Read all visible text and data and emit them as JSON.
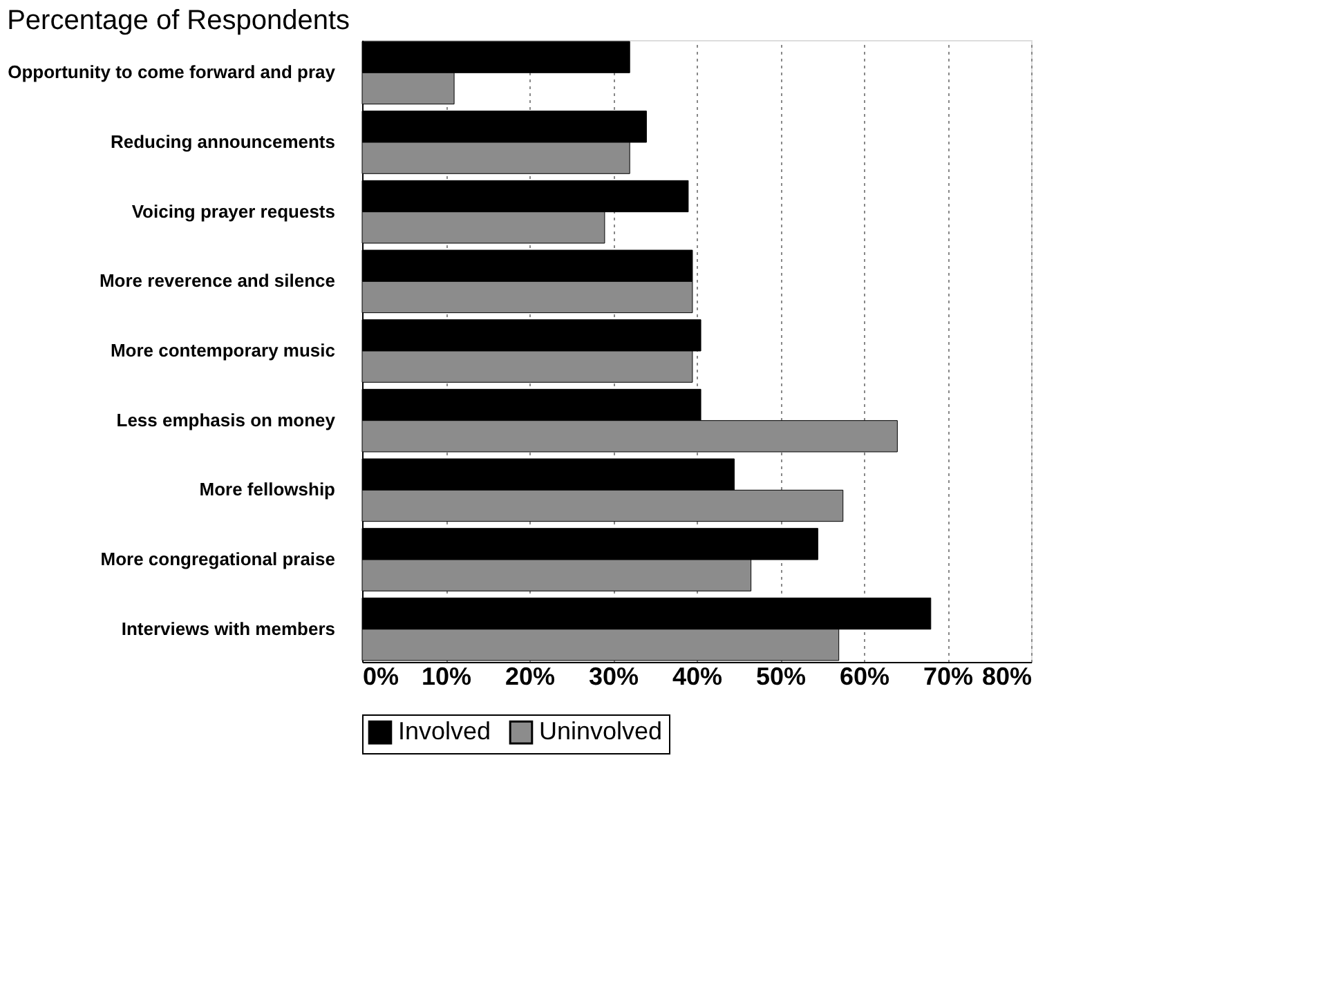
{
  "chart_data": {
    "type": "bar",
    "orientation": "horizontal",
    "title": "Percentage of Respondents",
    "categories": [
      "Opportunity to come forward and pray",
      "Reducing announcements",
      "Voicing prayer requests",
      "More reverence and silence",
      "More contemporary music",
      "Less emphasis on money",
      "More fellowship",
      "More congregational praise",
      "Interviews with members"
    ],
    "series": [
      {
        "name": "Involved",
        "color": "#000000",
        "values": [
          32,
          34,
          39,
          39.5,
          40.5,
          40.5,
          44.5,
          54.5,
          68
        ]
      },
      {
        "name": "Uninvolved",
        "color": "#8c8c8c",
        "values": [
          11,
          32,
          29,
          39.5,
          39.5,
          64,
          57.5,
          46.5,
          57
        ]
      }
    ],
    "xlim": [
      0,
      80
    ],
    "xticks": [
      {
        "value": 0,
        "label": "0%"
      },
      {
        "value": 10,
        "label": "10%"
      },
      {
        "value": 20,
        "label": "20%"
      },
      {
        "value": 30,
        "label": "30%"
      },
      {
        "value": 40,
        "label": "40%"
      },
      {
        "value": 50,
        "label": "50%"
      },
      {
        "value": 60,
        "label": "60%"
      },
      {
        "value": 70,
        "label": "70%"
      },
      {
        "value": 80,
        "label": "80%"
      }
    ],
    "grid": "x",
    "legend": "bottom"
  }
}
